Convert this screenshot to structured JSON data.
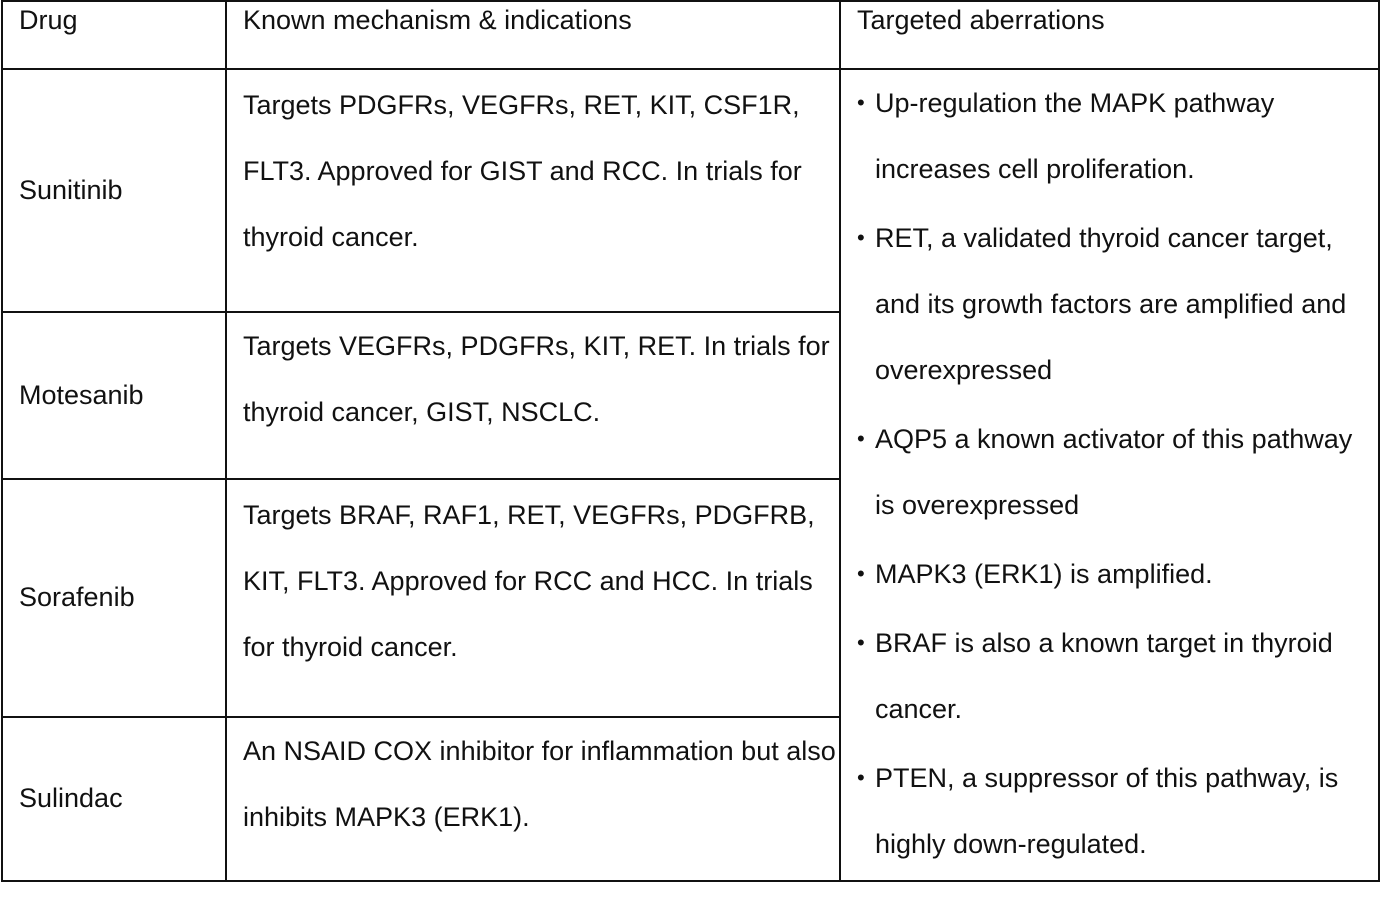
{
  "table": {
    "headers": {
      "drug": "Drug",
      "mechanism": "Known mechanism & indications",
      "aberrations": "Targeted aberrations"
    },
    "rows": [
      {
        "drug": "Sunitinib",
        "mechanism": "Targets PDGFRs, VEGFRs, RET, KIT, CSF1R, FLT3. Approved for GIST and RCC. In trials for thyroid cancer."
      },
      {
        "drug": "Motesanib",
        "mechanism": "Targets VEGFRs, PDGFRs, KIT, RET. In trials for thyroid cancer, GIST, NSCLC."
      },
      {
        "drug": "Sorafenib",
        "mechanism": "Targets BRAF, RAF1, RET, VEGFRs, PDGFRB, KIT, FLT3. Approved for RCC and HCC. In trials for thyroid cancer."
      },
      {
        "drug": "Sulindac",
        "mechanism": "An NSAID COX inhibitor for inflammation but also inhibits MAPK3 (ERK1)."
      }
    ],
    "aberrations": [
      "Up-regulation the MAPK pathway increases cell proliferation.",
      "RET, a validated thyroid cancer target, and its growth factors are amplified and overexpressed",
      "AQP5 a known activator of this pathway is overexpressed",
      "MAPK3 (ERK1) is amplified.",
      "BRAF is also a known target in thyroid cancer.",
      "PTEN, a suppressor of this pathway, is highly down-regulated."
    ],
    "bullet_glyph": "•"
  }
}
